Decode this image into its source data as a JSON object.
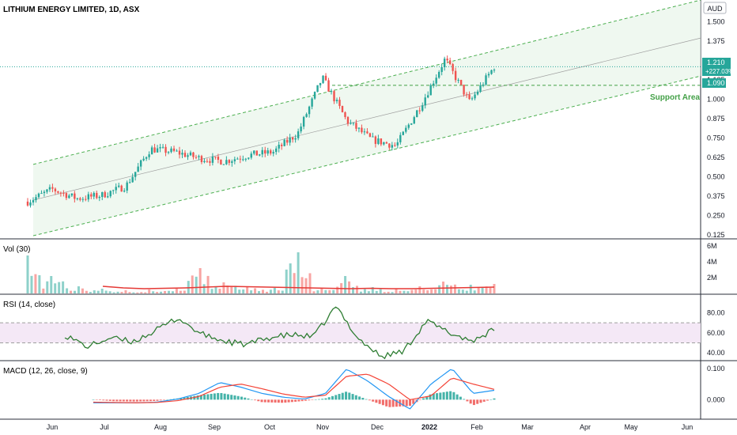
{
  "chart_data": [
    {
      "type": "candlestick",
      "title": "LITHIUM ENERGY LIMITED, 1D, ASX",
      "currency": "AUD",
      "y_scale": "linear",
      "ylim": [
        0.11,
        1.62
      ],
      "y_ticks": [
        "1.500",
        "1.375",
        "1.250",
        "1.125",
        "1.000",
        "0.875",
        "0.750",
        "0.625",
        "0.500",
        "0.375",
        "0.250",
        "0.125"
      ],
      "x_ticks": [
        "Jun",
        "Jul",
        "Aug",
        "Sep",
        "Oct",
        "Nov",
        "Dec",
        "2022",
        "Feb",
        "Mar",
        "Apr",
        "May",
        "Jun"
      ],
      "x_dates": [
        "2021-05-24",
        "2021-06-07",
        "2021-06-21",
        "2021-07-05",
        "2021-07-19",
        "2021-08-02",
        "2021-08-16",
        "2021-08-30",
        "2021-09-13",
        "2021-09-27",
        "2021-10-11",
        "2021-10-25",
        "2021-11-08",
        "2021-11-22",
        "2021-12-06",
        "2021-12-20",
        "2022-01-04",
        "2022-01-18",
        "2022-02-01",
        "2022-02-09"
      ],
      "close": [
        0.34,
        0.42,
        0.36,
        0.38,
        0.44,
        0.68,
        0.66,
        0.62,
        0.6,
        0.64,
        0.66,
        0.78,
        1.14,
        0.86,
        0.74,
        0.7,
        0.96,
        1.26,
        0.98,
        1.21
      ],
      "last_price": "1.210",
      "change_pct": "+227.03%",
      "support_level": "1.090",
      "annotation": "Support Area",
      "channel": {
        "upper": [
          [
            0.42,
            0.58
          ],
          [
            1.0,
            1.64
          ]
        ],
        "lower": [
          [
            0.42,
            0.12
          ],
          [
            1.0,
            1.15
          ]
        ]
      },
      "colors": {
        "up": "#26a69a",
        "down": "#ef5350",
        "channel": "#4caf50",
        "channel_fill": "#e8f5e9"
      }
    },
    {
      "type": "bar",
      "title": "Vol (30)",
      "y_ticks": [
        "6M",
        "4M",
        "2M"
      ],
      "ylim": [
        0,
        6500000
      ],
      "values": [
        4800000,
        2200000,
        900000,
        600000,
        400000,
        500000,
        600000,
        3200000,
        1400000,
        900000,
        700000,
        5200000,
        600000,
        2200000,
        800000,
        600000,
        900000,
        1500000,
        1100000,
        1200000
      ],
      "ma": [
        900000,
        700000,
        600000,
        650000,
        700000,
        800000,
        900000,
        850000,
        800000,
        750000,
        700000,
        650000,
        600000,
        650000,
        600000,
        600000,
        650000,
        700000,
        750000,
        800000
      ]
    },
    {
      "type": "line",
      "title": "RSI (14, close)",
      "y_ticks": [
        "80.00",
        "60.00",
        "40.00"
      ],
      "ylim": [
        33,
        97
      ],
      "band": [
        50,
        70
      ],
      "values": [
        58,
        46,
        55,
        51,
        62,
        75,
        59,
        52,
        48,
        55,
        58,
        56,
        86,
        54,
        36,
        42,
        72,
        60,
        52,
        63
      ],
      "color": "#2e7d32"
    },
    {
      "type": "bar",
      "title": "MACD (12, 26, close, 9)",
      "y_ticks": [
        "0.100",
        "0.000"
      ],
      "ylim": [
        -0.06,
        0.12
      ],
      "histogram": [
        0.0,
        -0.005,
        -0.006,
        -0.004,
        0.004,
        0.014,
        0.022,
        0.01,
        -0.008,
        -0.01,
        -0.004,
        0.004,
        0.026,
        0.0,
        -0.024,
        -0.02,
        0.018,
        0.028,
        -0.018,
        0.004
      ],
      "macd": [
        -0.01,
        -0.01,
        -0.01,
        -0.008,
        0.002,
        0.02,
        0.055,
        0.04,
        0.02,
        0.008,
        0.002,
        0.02,
        0.098,
        0.06,
        0.01,
        -0.03,
        0.05,
        0.1,
        0.02,
        0.03
      ],
      "signal": [
        -0.008,
        -0.009,
        -0.01,
        -0.009,
        -0.003,
        0.01,
        0.04,
        0.05,
        0.035,
        0.018,
        0.008,
        0.014,
        0.075,
        0.082,
        0.05,
        0.0,
        0.012,
        0.07,
        0.05,
        0.033
      ],
      "colors": {
        "macd": "#2196f3",
        "signal": "#f44336",
        "hist_up": "#26a69a",
        "hist_down": "#ef5350"
      }
    }
  ]
}
